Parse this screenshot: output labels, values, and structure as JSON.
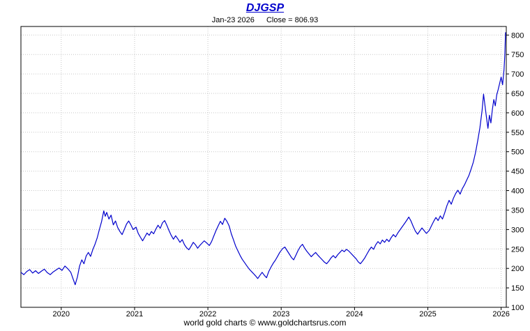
{
  "header": {
    "title": "DJGSP",
    "date": "Jan-23 2026",
    "close": "Close = 806.93"
  },
  "footer": {
    "credit": "world gold charts © www.goldchartsrus.com"
  },
  "colors": {
    "line": "#0000cc",
    "title": "#0000cc",
    "grid": "#c6c6c6",
    "axis": "#000000"
  },
  "chart_data": {
    "type": "line",
    "title": "DJGSP",
    "subtitle_date": "Jan-23 2026",
    "last_close": 806.93,
    "legend": null,
    "grid": "dotted",
    "y_axis_side": "right",
    "x_ticks": [
      2020,
      2021,
      2022,
      2023,
      2024,
      2025,
      2026
    ],
    "x_tick_labels": [
      "2020",
      "2021",
      "2022",
      "2023",
      "2024",
      "2025",
      "2026"
    ],
    "y_ticks": [
      100,
      150,
      200,
      250,
      300,
      350,
      400,
      450,
      500,
      550,
      600,
      650,
      700,
      750,
      800
    ],
    "xlim": [
      2019.45,
      2026.07
    ],
    "ylim": [
      100,
      822
    ],
    "points": [
      [
        2019.45,
        190
      ],
      [
        2019.49,
        184
      ],
      [
        2019.53,
        192
      ],
      [
        2019.57,
        197
      ],
      [
        2019.61,
        188
      ],
      [
        2019.65,
        194
      ],
      [
        2019.69,
        187
      ],
      [
        2019.73,
        193
      ],
      [
        2019.77,
        198
      ],
      [
        2019.81,
        189
      ],
      [
        2019.85,
        184
      ],
      [
        2019.89,
        191
      ],
      [
        2019.93,
        196
      ],
      [
        2019.97,
        201
      ],
      [
        2020.01,
        195
      ],
      [
        2020.05,
        206
      ],
      [
        2020.09,
        199
      ],
      [
        2020.13,
        190
      ],
      [
        2020.16,
        174
      ],
      [
        2020.19,
        158
      ],
      [
        2020.22,
        178
      ],
      [
        2020.25,
        206
      ],
      [
        2020.28,
        222
      ],
      [
        2020.31,
        212
      ],
      [
        2020.34,
        232
      ],
      [
        2020.37,
        241
      ],
      [
        2020.4,
        231
      ],
      [
        2020.43,
        248
      ],
      [
        2020.46,
        262
      ],
      [
        2020.49,
        278
      ],
      [
        2020.52,
        300
      ],
      [
        2020.55,
        320
      ],
      [
        2020.58,
        348
      ],
      [
        2020.6,
        334
      ],
      [
        2020.62,
        344
      ],
      [
        2020.65,
        327
      ],
      [
        2020.68,
        337
      ],
      [
        2020.71,
        312
      ],
      [
        2020.74,
        322
      ],
      [
        2020.77,
        305
      ],
      [
        2020.8,
        295
      ],
      [
        2020.83,
        287
      ],
      [
        2020.86,
        300
      ],
      [
        2020.89,
        314
      ],
      [
        2020.92,
        322
      ],
      [
        2020.95,
        312
      ],
      [
        2020.98,
        300
      ],
      [
        2021.02,
        306
      ],
      [
        2021.05,
        290
      ],
      [
        2021.08,
        280
      ],
      [
        2021.11,
        271
      ],
      [
        2021.14,
        281
      ],
      [
        2021.17,
        291
      ],
      [
        2021.2,
        285
      ],
      [
        2021.23,
        295
      ],
      [
        2021.26,
        289
      ],
      [
        2021.29,
        301
      ],
      [
        2021.32,
        311
      ],
      [
        2021.35,
        303
      ],
      [
        2021.38,
        317
      ],
      [
        2021.41,
        323
      ],
      [
        2021.44,
        311
      ],
      [
        2021.47,
        297
      ],
      [
        2021.5,
        285
      ],
      [
        2021.53,
        275
      ],
      [
        2021.56,
        284
      ],
      [
        2021.59,
        276
      ],
      [
        2021.62,
        267
      ],
      [
        2021.65,
        274
      ],
      [
        2021.68,
        261
      ],
      [
        2021.71,
        253
      ],
      [
        2021.74,
        248
      ],
      [
        2021.77,
        257
      ],
      [
        2021.8,
        267
      ],
      [
        2021.83,
        261
      ],
      [
        2021.86,
        252
      ],
      [
        2021.89,
        259
      ],
      [
        2021.92,
        265
      ],
      [
        2021.95,
        271
      ],
      [
        2021.98,
        266
      ],
      [
        2022.02,
        259
      ],
      [
        2022.05,
        269
      ],
      [
        2022.08,
        283
      ],
      [
        2022.11,
        297
      ],
      [
        2022.14,
        309
      ],
      [
        2022.17,
        321
      ],
      [
        2022.2,
        313
      ],
      [
        2022.23,
        329
      ],
      [
        2022.26,
        321
      ],
      [
        2022.29,
        309
      ],
      [
        2022.32,
        289
      ],
      [
        2022.35,
        273
      ],
      [
        2022.38,
        257
      ],
      [
        2022.41,
        245
      ],
      [
        2022.44,
        233
      ],
      [
        2022.47,
        223
      ],
      [
        2022.5,
        215
      ],
      [
        2022.53,
        207
      ],
      [
        2022.56,
        199
      ],
      [
        2022.59,
        193
      ],
      [
        2022.62,
        187
      ],
      [
        2022.65,
        181
      ],
      [
        2022.68,
        174
      ],
      [
        2022.71,
        182
      ],
      [
        2022.74,
        190
      ],
      [
        2022.77,
        182
      ],
      [
        2022.8,
        176
      ],
      [
        2022.83,
        192
      ],
      [
        2022.86,
        203
      ],
      [
        2022.89,
        213
      ],
      [
        2022.92,
        221
      ],
      [
        2022.95,
        231
      ],
      [
        2022.98,
        241
      ],
      [
        2023.02,
        251
      ],
      [
        2023.05,
        255
      ],
      [
        2023.08,
        246
      ],
      [
        2023.11,
        237
      ],
      [
        2023.14,
        228
      ],
      [
        2023.17,
        222
      ],
      [
        2023.2,
        234
      ],
      [
        2023.23,
        246
      ],
      [
        2023.26,
        256
      ],
      [
        2023.29,
        262
      ],
      [
        2023.32,
        252
      ],
      [
        2023.35,
        244
      ],
      [
        2023.38,
        237
      ],
      [
        2023.41,
        230
      ],
      [
        2023.44,
        236
      ],
      [
        2023.47,
        241
      ],
      [
        2023.5,
        234
      ],
      [
        2023.53,
        228
      ],
      [
        2023.56,
        222
      ],
      [
        2023.59,
        216
      ],
      [
        2023.62,
        212
      ],
      [
        2023.65,
        219
      ],
      [
        2023.68,
        227
      ],
      [
        2023.71,
        233
      ],
      [
        2023.74,
        227
      ],
      [
        2023.77,
        235
      ],
      [
        2023.8,
        241
      ],
      [
        2023.83,
        247
      ],
      [
        2023.86,
        243
      ],
      [
        2023.89,
        249
      ],
      [
        2023.92,
        245
      ],
      [
        2023.95,
        239
      ],
      [
        2023.98,
        233
      ],
      [
        2024.02,
        225
      ],
      [
        2024.05,
        217
      ],
      [
        2024.08,
        212
      ],
      [
        2024.11,
        219
      ],
      [
        2024.14,
        227
      ],
      [
        2024.17,
        237
      ],
      [
        2024.2,
        247
      ],
      [
        2024.23,
        255
      ],
      [
        2024.26,
        249
      ],
      [
        2024.29,
        261
      ],
      [
        2024.32,
        269
      ],
      [
        2024.35,
        263
      ],
      [
        2024.38,
        273
      ],
      [
        2024.41,
        267
      ],
      [
        2024.44,
        275
      ],
      [
        2024.47,
        269
      ],
      [
        2024.5,
        279
      ],
      [
        2024.53,
        287
      ],
      [
        2024.56,
        281
      ],
      [
        2024.59,
        291
      ],
      [
        2024.62,
        299
      ],
      [
        2024.65,
        307
      ],
      [
        2024.68,
        315
      ],
      [
        2024.71,
        323
      ],
      [
        2024.74,
        332
      ],
      [
        2024.77,
        322
      ],
      [
        2024.8,
        308
      ],
      [
        2024.83,
        296
      ],
      [
        2024.86,
        288
      ],
      [
        2024.89,
        296
      ],
      [
        2024.92,
        304
      ],
      [
        2024.95,
        297
      ],
      [
        2024.98,
        290
      ],
      [
        2025.02,
        298
      ],
      [
        2025.05,
        310
      ],
      [
        2025.08,
        321
      ],
      [
        2025.11,
        331
      ],
      [
        2025.14,
        323
      ],
      [
        2025.17,
        335
      ],
      [
        2025.2,
        327
      ],
      [
        2025.23,
        343
      ],
      [
        2025.26,
        361
      ],
      [
        2025.29,
        375
      ],
      [
        2025.32,
        365
      ],
      [
        2025.35,
        381
      ],
      [
        2025.38,
        393
      ],
      [
        2025.41,
        401
      ],
      [
        2025.44,
        391
      ],
      [
        2025.47,
        405
      ],
      [
        2025.5,
        415
      ],
      [
        2025.53,
        427
      ],
      [
        2025.56,
        439
      ],
      [
        2025.59,
        455
      ],
      [
        2025.62,
        473
      ],
      [
        2025.65,
        497
      ],
      [
        2025.68,
        528
      ],
      [
        2025.71,
        562
      ],
      [
        2025.74,
        606
      ],
      [
        2025.76,
        648
      ],
      [
        2025.78,
        618
      ],
      [
        2025.8,
        588
      ],
      [
        2025.82,
        560
      ],
      [
        2025.84,
        594
      ],
      [
        2025.86,
        574
      ],
      [
        2025.88,
        608
      ],
      [
        2025.9,
        634
      ],
      [
        2025.92,
        618
      ],
      [
        2025.94,
        646
      ],
      [
        2025.96,
        660
      ],
      [
        2025.98,
        676
      ],
      [
        2026.0,
        692
      ],
      [
        2026.02,
        672
      ],
      [
        2026.04,
        712
      ],
      [
        2026.05,
        748
      ],
      [
        2026.06,
        806.93
      ]
    ]
  }
}
